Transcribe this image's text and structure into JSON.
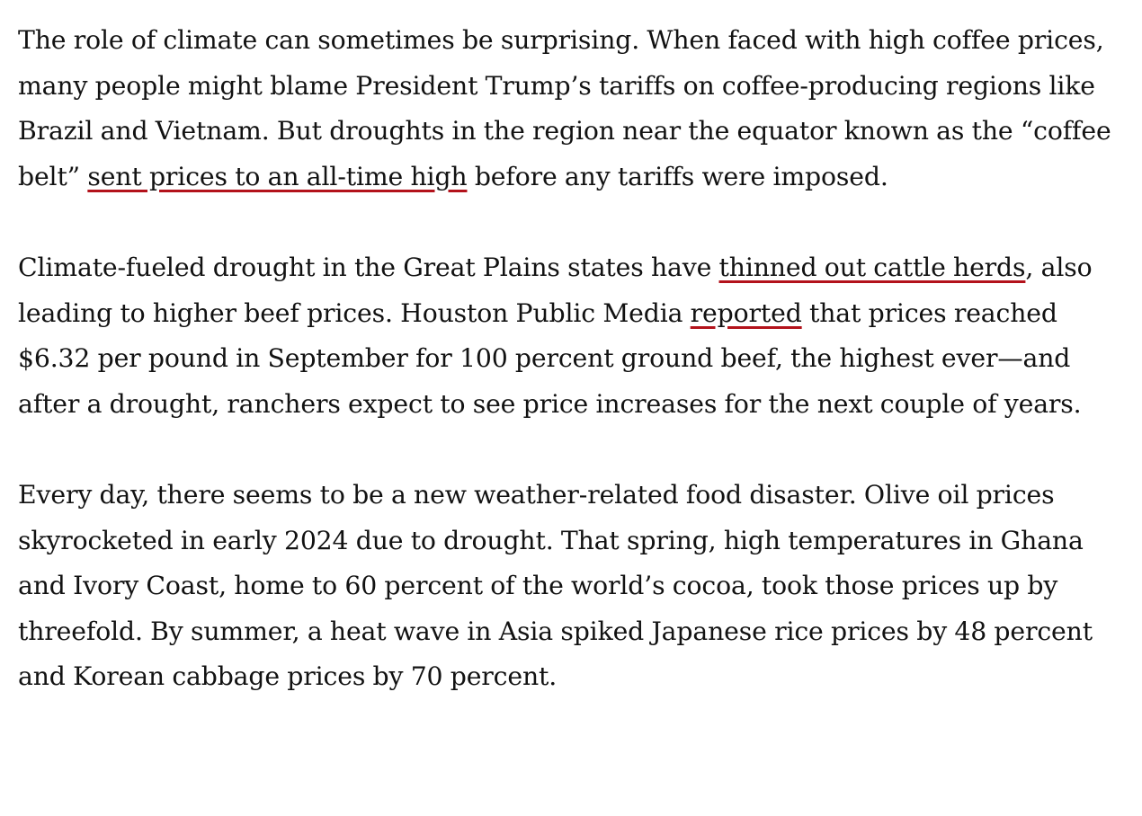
{
  "article": {
    "paragraphs": [
      {
        "segments": [
          {
            "text": "The role of climate can sometimes be surprising. When faced with high coffee prices, many people might blame President Trump’s tariffs on coffee-producing regions like Brazil and Vietnam. But droughts in the region near the equator known as the “coffee belt” "
          },
          {
            "text": "sent prices to an all-time high",
            "link": true
          },
          {
            "text": " before any tariffs were imposed."
          }
        ]
      },
      {
        "segments": [
          {
            "text": "Climate-fueled drought in the Great Plains states have "
          },
          {
            "text": "thinned out cattle herds",
            "link": true
          },
          {
            "text": ", also leading to higher beef prices. Houston Public Media "
          },
          {
            "text": "reported",
            "link": true
          },
          {
            "text": " that prices reached $6.32 per pound in September for 100 percent ground beef, the highest ever—and after a drought, ranchers expect to see price increases for the next couple of years."
          }
        ]
      },
      {
        "segments": [
          {
            "text": "Every day, there seems to be a new weather-related food disaster. Olive oil prices skyrocketed in early 2024 due to drought. That spring, high temperatures in Ghana and Ivory Coast, home to 60 percent of the world’s cocoa, took those prices up by threefold. By summer, a heat wave in Asia spiked Japanese rice prices by 48 percent and Korean cabbage prices by 70 percent."
          }
        ]
      }
    ],
    "colors": {
      "text": "#121212",
      "link_underline": "#b3121b",
      "background": "#ffffff"
    }
  }
}
